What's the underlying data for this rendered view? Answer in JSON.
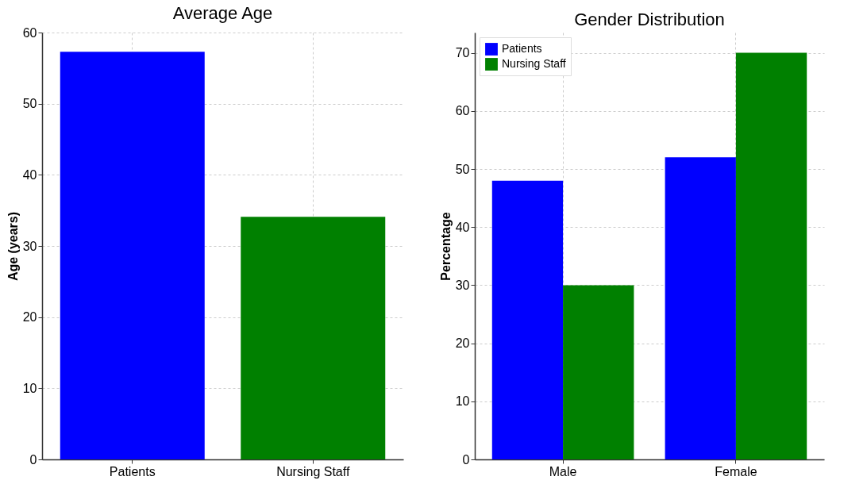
{
  "chart_data": [
    {
      "type": "bar",
      "title": "Average Age",
      "ylabel": "Age (years)",
      "categories": [
        "Patients",
        "Nursing Staff"
      ],
      "values": [
        57.3,
        34.1
      ],
      "colors": [
        "#0000ff",
        "#008000"
      ],
      "ylim": [
        0,
        60
      ],
      "yticks": [
        0,
        10,
        20,
        30,
        40,
        50,
        60
      ],
      "grid": true
    },
    {
      "type": "bar",
      "title": "Gender Distribution",
      "ylabel": "Percentage",
      "categories": [
        "Male",
        "Female"
      ],
      "series": [
        {
          "name": "Patients",
          "color": "#0000ff",
          "values": [
            48,
            52
          ]
        },
        {
          "name": "Nursing Staff",
          "color": "#008000",
          "values": [
            30,
            70
          ]
        }
      ],
      "ylim": [
        0,
        73.5
      ],
      "yticks": [
        0,
        10,
        20,
        30,
        40,
        50,
        60,
        70
      ],
      "grid": true,
      "legend": "top left"
    }
  ]
}
